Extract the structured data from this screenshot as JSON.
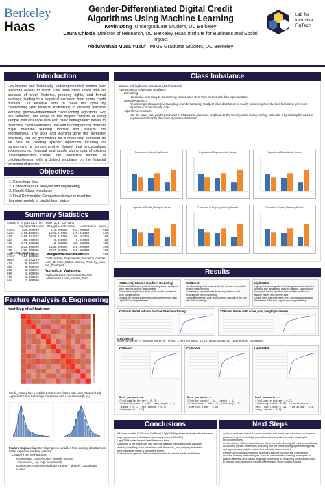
{
  "header": {
    "berkeley": "Berkeley",
    "haas": "Haas",
    "title_l1": "Gender-Differentiated Digital Credit",
    "title_l2": "Algorithms Using Machine Learning",
    "author1_name": "Kevin Dong",
    "author1_role": "–Undergraduate Student, UC Berkeley",
    "author2_name": "Laura Chioda",
    "author2_role": "–Director of Research, UC Berkeley Haas Institute for Business and Social Impact",
    "author3_name": "Abdulwahab Musa Yusuf",
    "author3_role": "– MIMS Graduate Student, UC Berkeley",
    "lab_l1": "Lab for",
    "lab_l2": "Inclusive",
    "lab_l3": "FinTech"
  },
  "intro": {
    "heading": "Introduction",
    "body": "Low-income and historically underrepresented women face restricted access to credit. This issue often arises from an absence of credit histories, property rights, and formal earnings, leading to a perpetual exclusion from formal credit markets. Our initiative aims to break this cycle by collaborating with financial institutions to develop machine learning, gender-differentiated credit-scoring algorithms. For this semester, the scope of the project consists of using sample loan issuance data with basic demographic details to determine credit-worthiness. We aim to compare the different major machine learning models and analyze the effectiveness. The work and learning done this semester effectively laid the groundwork for success next semester as we plan on creating specific algorithms focusing on transforming a comprehensive dataset that encapsulates socioeconomic, financial, and mobile phone data of existing underrepresented clients into predictive models of creditworthiness, with a distinct emphasis on the financial behaviors of women."
  },
  "objectives": {
    "heading": "Objectives",
    "items": [
      "1.  Clean loan data",
      "2.  Conduct feature analysis and engineering",
      "3.  Handle Class Imbalance",
      "4.  Final Deliverable: Comparison between machine-learning models to predict loan status"
    ]
  },
  "summary": {
    "heading": "Summary Statistics",
    "table": "Summary Statistics for Numerical Columns:\n       ApplicantIncome  CoapplicantIncome  LoanAmount  Loan_Amount_Term\ncount    614.000000       614.000000   592.000000        600.000000\nmean    5403.459283      1621.245798   146.412162        342.000000\nstd     6109.041673      2926.248369    85.587325         65.12041\nmin      150.000000         0.000000     9.000000         12.000000\n25%     2877.500000         0.000000   100.000000        360.000000\n50%     3812.500000      1188.500000   128.000000        360.000000\n75%     5795.000000      2297.250000   168.000000        360.000000\nmax    81000.000000     41667.000000   700.000000        480.000000",
    "table2": "  Credit_History\ncount    564.000000\nmean       0.842199\nstd        0.364878\nmin        0.000000\n25%        1.000000\n50%        1.000000\n75%        1.000000\nmax        1.000000",
    "cat_title": "Categorical Variables:",
    "cat_body": "Credit_History, Dependents, Education, Gender Loan_ID, Loan_Status, Married, Property_Area, Self_Employed",
    "num_title": "Numerical Variables:",
    "num_body": "ApplicantIncome, CoApplicantIncome, LoanAmount, Loan_Amount_Term"
  },
  "feature": {
    "heading": "Feature Analysis & Engineering",
    "heatmap_title": "Heat Map of all features:",
    "note1": "Credit_History has a notable positive correlation with Loan_Status (0.54)",
    "note2": "ApplicantIncome has a high correlation with LoanAmount (0.57)",
    "fe_title": "Feature Engineering:",
    "fe_body": "Developing new variables from existing data that can better capture underlying patterns",
    "fe_list": [
      "Created three new features",
      "IncomeRatio: Loan Amount / Monthly Income",
      "LoanAmount_Log: log(LoanAmount)",
      "TotalIncome = Monthly Applicant Income + Monthly Coapplicant Income"
    ]
  },
  "class": {
    "heading": "Class Imbalance",
    "items": [
      "Dataset with high class imbalance (81.8/18.2 split)",
      "Approaches to solve class imbalance",
      "Do nothing",
      "Not always necessary to do anything; issues often stem from metrics and data representation",
      "Manual Approach",
      "Resampling techniques (oversampling or undersampling) to adjust class distribution or modify class weights in the loss function to give more importance to the minority class",
      "Algorithmic Approach",
      "Use the scale_pos_weight parameter in XGBoost to give more emphasis to the minority class during training. Calculate it by dividing the count of negative instances by the count of positive instances"
    ],
    "plots": [
      "Proportion of Married by Gender",
      "Proportion of Dependents by Gender",
      "Proportion of Education by Gender",
      "Proportion of Credit_History by Gender",
      "Proportion of Property_Area by Gender",
      "Proportion of Loan_Status by Gender"
    ]
  },
  "results": {
    "heading": "Results",
    "xgb_title": "XGBoost (eXtreme Gradient Boosting)",
    "xgb_body": [
      "Optimized distributed gradient boosting library designed to be efficient, flexible, and portable",
      "Grows trees depth-wise (level-wise), which can lead to more complex trees",
      "Efficient but can be slower and use more memory than LightGBM on large datasets"
    ],
    "cat_title": "CatBoost",
    "cat_body": [
      "Handles categorical features directly without the need for explicit preprocessing",
      "Grows trees symmetrically, increasing balance and reducing the risk of overfitting",
      "Less parameters to tune and can work well out of the box with default settings"
    ],
    "lgbm_title": "LightGBM",
    "lgbm_body": [
      "High-performance gradient boosting framework based on decision tree algorithms, used for ranking, classification",
      "Histogram-based algorithm that bundles continuous feature values into discrete bins",
      "Grows trees leaf-wise (best-first), choosing the leaf with the highest delta loss to grow reducing overfitting"
    ],
    "xgbnf": "XGBoost Model with no Feature Selection/Tuning",
    "xgbsp": "XGBoost Model with scale_pos_weight parameter",
    "gridsearch": "GridSearch",
    "gs_params": "Hyperparameters: Maximum Depth of Trees, Learning Rate, L1/L2 Regularization, Iterations, Subsample",
    "m1": "XGBoost",
    "m2": "CatBoost",
    "m3": "LightGBM",
    "bp_label": "Best parameters:",
    "bp1": "{'colsample_bytree': 0.75, 'learning_rate': 0.01, 'max_depth': 3, 'gamma': 0.1, 'reg_lambda': 0.5, 'subsample': 0.9}",
    "bp2": "{'border_count': 64, 'depth': 4, 'iterations': 100, 'l2_leaf_reg': 3, 'learning_rate': 0.05}",
    "bp3": "{'colsample_bytree': 0.75, 'learning_rate': 0.01, 'n_estimators': 100, 'num_leaves': 31, 'reg_alpha': 0.1, 'reg_lambda': 0.1}"
  },
  "conclusions": {
    "heading": "Conclusions",
    "items": [
      "All three models (XGBoost, CatBoost, LightGBM) perform similarly with the same hyperparameter optimization (accuracy around 83-85%)",
      "LightGBM is the fastest; best inference time",
      "CatBoost is the easiest to use with the dataset with categorical variables",
      "Actively handling class imbalance with the scale_pos_weight parameter decreased the model's predictive power",
      "Viable to use gender-differentiated models to predict credit-worthiness"
    ]
  },
  "next": {
    "heading": "Next Steps",
    "items": [
      "Apply on real user data: Use more complex, real-world user data from our financial partners to apply knowledge gained from this semester to make meaningful predictive models",
      "Create Gender-Differentiated Models: Develop and refine algorithms that specifically account for gender differences, ensuring that the credit scoring system recognizes and appropriately weighs factors that uniquely impact women",
      "Explore Other Advancements in Machine Learning: Incorporate cutting-edge machine learning methodologies, such as unsupervised learning techniques for pattern detection and natural language processing for analyzing unstructured data, to improve the precision of gender-differentiated credit-scoring models"
    ]
  }
}
